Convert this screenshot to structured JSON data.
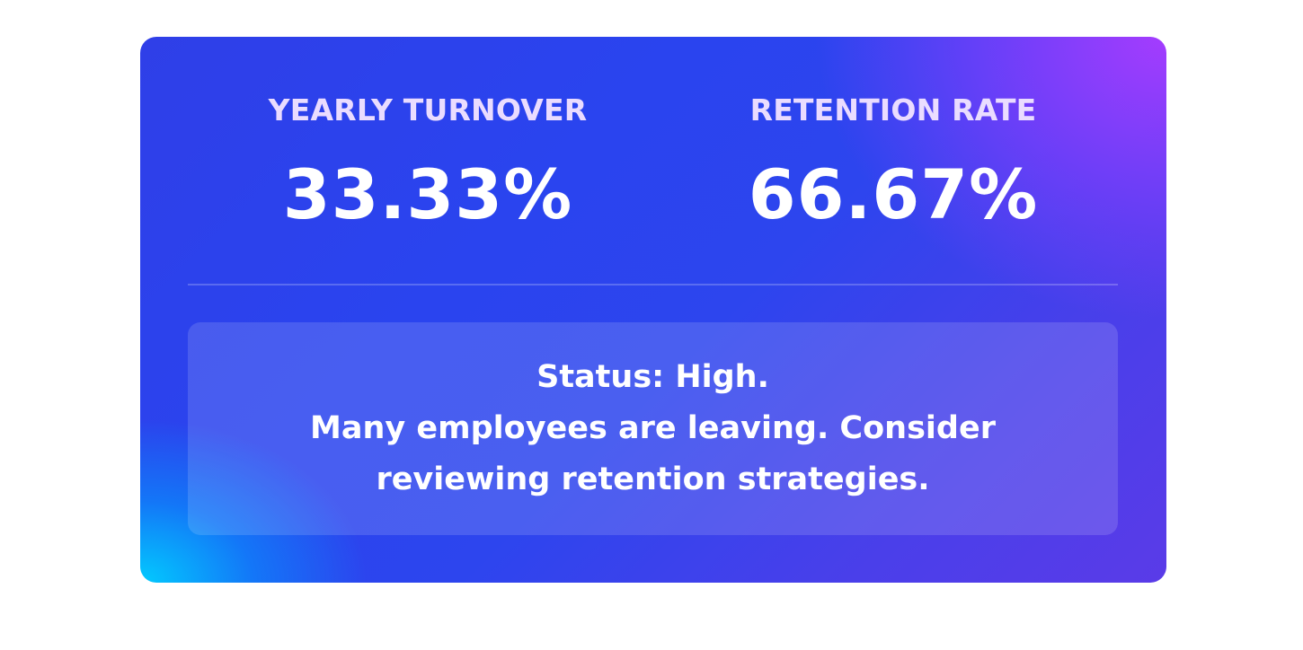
{
  "metrics": {
    "turnover": {
      "label": "YEARLY TURNOVER",
      "value": "33.33%"
    },
    "retention": {
      "label": "RETENTION RATE",
      "value": "66.67%"
    }
  },
  "status": {
    "line": "Status: High.",
    "message": "Many employees are leaving. Consider reviewing retention strategies."
  },
  "colors": {
    "gradient_start": "#2f3fe8",
    "gradient_accent_cyan": "#00d2ff",
    "gradient_accent_purple": "#aa3cff",
    "label_text": "#eadcff",
    "value_text": "#ffffff"
  }
}
